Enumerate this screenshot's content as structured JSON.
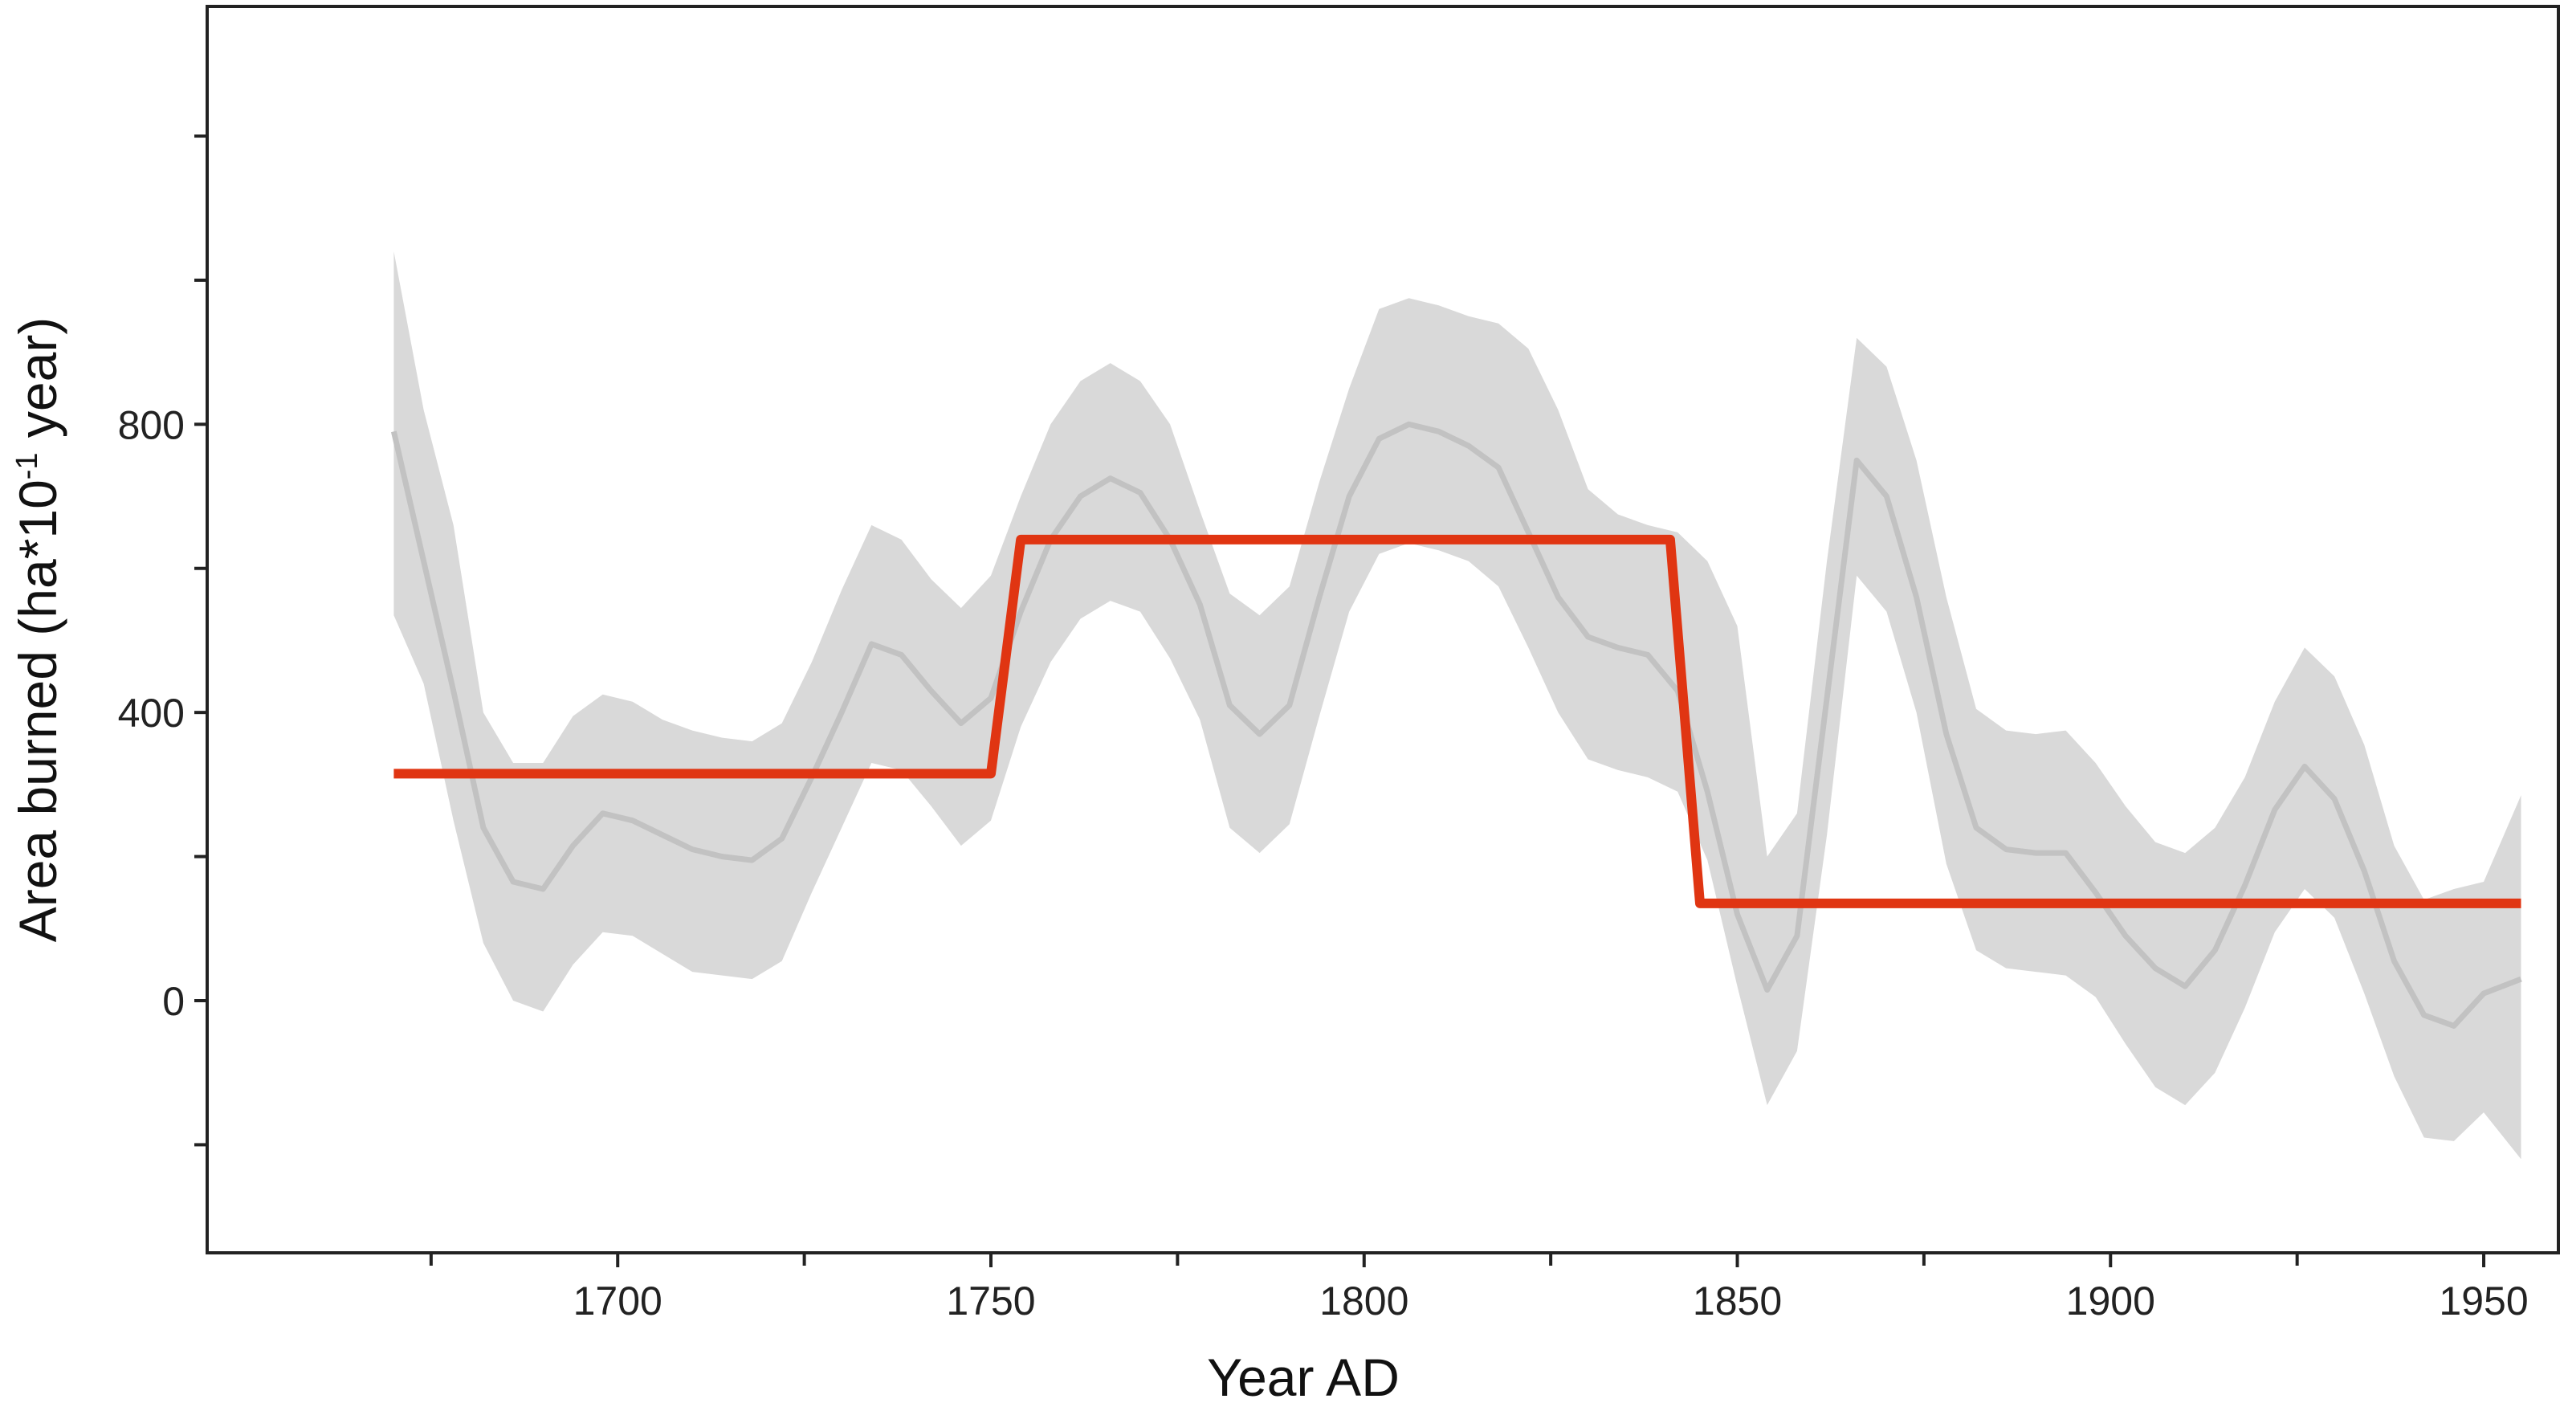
{
  "chart_data": {
    "type": "line",
    "xlabel": "Year AD",
    "ylabel": {
      "prefix": "Area burned (ha*10",
      "sup": "-1",
      "suffix": " year)"
    },
    "xlim": [
      1645,
      1960
    ],
    "ylim": [
      -350,
      1380
    ],
    "x_ticks": [
      1700,
      1750,
      1800,
      1850,
      1900,
      1950
    ],
    "x_minor_ticks": [
      1675,
      1725,
      1775,
      1825,
      1875,
      1925
    ],
    "y_ticks": [
      0,
      400,
      800
    ],
    "y_minor_ticks": [
      -200,
      200,
      600,
      1000,
      1200
    ],
    "grid": false,
    "colors": {
      "mean": "#c2c2c2",
      "band": "#d9d9d9",
      "step": "#e03512",
      "axis": "#222222"
    },
    "series": [
      {
        "role": "mean",
        "x": [
          1670,
          1674,
          1678,
          1682,
          1686,
          1690,
          1694,
          1698,
          1702,
          1706,
          1710,
          1714,
          1718,
          1722,
          1726,
          1730,
          1734,
          1738,
          1742,
          1746,
          1750,
          1754,
          1758,
          1762,
          1766,
          1770,
          1774,
          1778,
          1782,
          1786,
          1790,
          1794,
          1798,
          1802,
          1806,
          1810,
          1814,
          1818,
          1822,
          1826,
          1830,
          1834,
          1838,
          1842,
          1846,
          1850,
          1854,
          1858,
          1862,
          1866,
          1870,
          1874,
          1878,
          1882,
          1886,
          1890,
          1894,
          1898,
          1902,
          1906,
          1910,
          1914,
          1918,
          1922,
          1926,
          1930,
          1934,
          1938,
          1942,
          1946,
          1950,
          1955
        ],
        "y": [
          790,
          610,
          430,
          240,
          165,
          155,
          215,
          260,
          250,
          230,
          210,
          200,
          195,
          225,
          310,
          400,
          495,
          480,
          430,
          385,
          420,
          540,
          640,
          700,
          725,
          705,
          640,
          550,
          410,
          370,
          410,
          560,
          700,
          780,
          800,
          790,
          770,
          740,
          650,
          560,
          505,
          490,
          480,
          430,
          290,
          120,
          15,
          90,
          420,
          750,
          700,
          560,
          370,
          240,
          210,
          205,
          205,
          150,
          90,
          45,
          20,
          70,
          160,
          265,
          325,
          280,
          180,
          55,
          -20,
          -35,
          10,
          30
        ]
      },
      {
        "role": "upper",
        "x": [
          1670,
          1674,
          1678,
          1682,
          1686,
          1690,
          1694,
          1698,
          1702,
          1706,
          1710,
          1714,
          1718,
          1722,
          1726,
          1730,
          1734,
          1738,
          1742,
          1746,
          1750,
          1754,
          1758,
          1762,
          1766,
          1770,
          1774,
          1778,
          1782,
          1786,
          1790,
          1794,
          1798,
          1802,
          1806,
          1810,
          1814,
          1818,
          1822,
          1826,
          1830,
          1834,
          1838,
          1842,
          1846,
          1850,
          1854,
          1858,
          1862,
          1866,
          1870,
          1874,
          1878,
          1882,
          1886,
          1890,
          1894,
          1898,
          1902,
          1906,
          1910,
          1914,
          1918,
          1922,
          1926,
          1930,
          1934,
          1938,
          1942,
          1946,
          1950,
          1955
        ],
        "y": [
          1040,
          820,
          660,
          400,
          330,
          330,
          395,
          425,
          415,
          390,
          375,
          365,
          360,
          385,
          470,
          570,
          660,
          640,
          585,
          545,
          590,
          700,
          800,
          860,
          885,
          860,
          800,
          680,
          565,
          535,
          575,
          720,
          850,
          960,
          975,
          965,
          950,
          940,
          905,
          820,
          710,
          675,
          660,
          650,
          610,
          520,
          200,
          260,
          610,
          920,
          880,
          750,
          560,
          405,
          375,
          370,
          375,
          330,
          270,
          220,
          205,
          240,
          310,
          415,
          490,
          450,
          355,
          215,
          140,
          155,
          165,
          285
        ]
      },
      {
        "role": "lower",
        "x": [
          1670,
          1674,
          1678,
          1682,
          1686,
          1690,
          1694,
          1698,
          1702,
          1706,
          1710,
          1714,
          1718,
          1722,
          1726,
          1730,
          1734,
          1738,
          1742,
          1746,
          1750,
          1754,
          1758,
          1762,
          1766,
          1770,
          1774,
          1778,
          1782,
          1786,
          1790,
          1794,
          1798,
          1802,
          1806,
          1810,
          1814,
          1818,
          1822,
          1826,
          1830,
          1834,
          1838,
          1842,
          1846,
          1850,
          1854,
          1858,
          1862,
          1866,
          1870,
          1874,
          1878,
          1882,
          1886,
          1890,
          1894,
          1898,
          1902,
          1906,
          1910,
          1914,
          1918,
          1922,
          1926,
          1930,
          1934,
          1938,
          1942,
          1946,
          1950,
          1955
        ],
        "y": [
          535,
          440,
          250,
          80,
          0,
          -15,
          50,
          95,
          90,
          65,
          40,
          35,
          30,
          55,
          150,
          240,
          330,
          320,
          270,
          215,
          250,
          380,
          470,
          530,
          555,
          540,
          475,
          390,
          240,
          205,
          245,
          395,
          540,
          620,
          635,
          625,
          610,
          575,
          490,
          400,
          335,
          320,
          310,
          290,
          195,
          20,
          -145,
          -70,
          230,
          590,
          540,
          400,
          190,
          70,
          45,
          40,
          35,
          5,
          -60,
          -120,
          -145,
          -100,
          -10,
          95,
          155,
          115,
          10,
          -105,
          -190,
          -195,
          -155,
          -220
        ]
      },
      {
        "role": "mean-regime",
        "x": [
          1670,
          1750,
          1754,
          1841,
          1845,
          1955
        ],
        "y": [
          315,
          315,
          640,
          640,
          135,
          135
        ]
      }
    ]
  }
}
